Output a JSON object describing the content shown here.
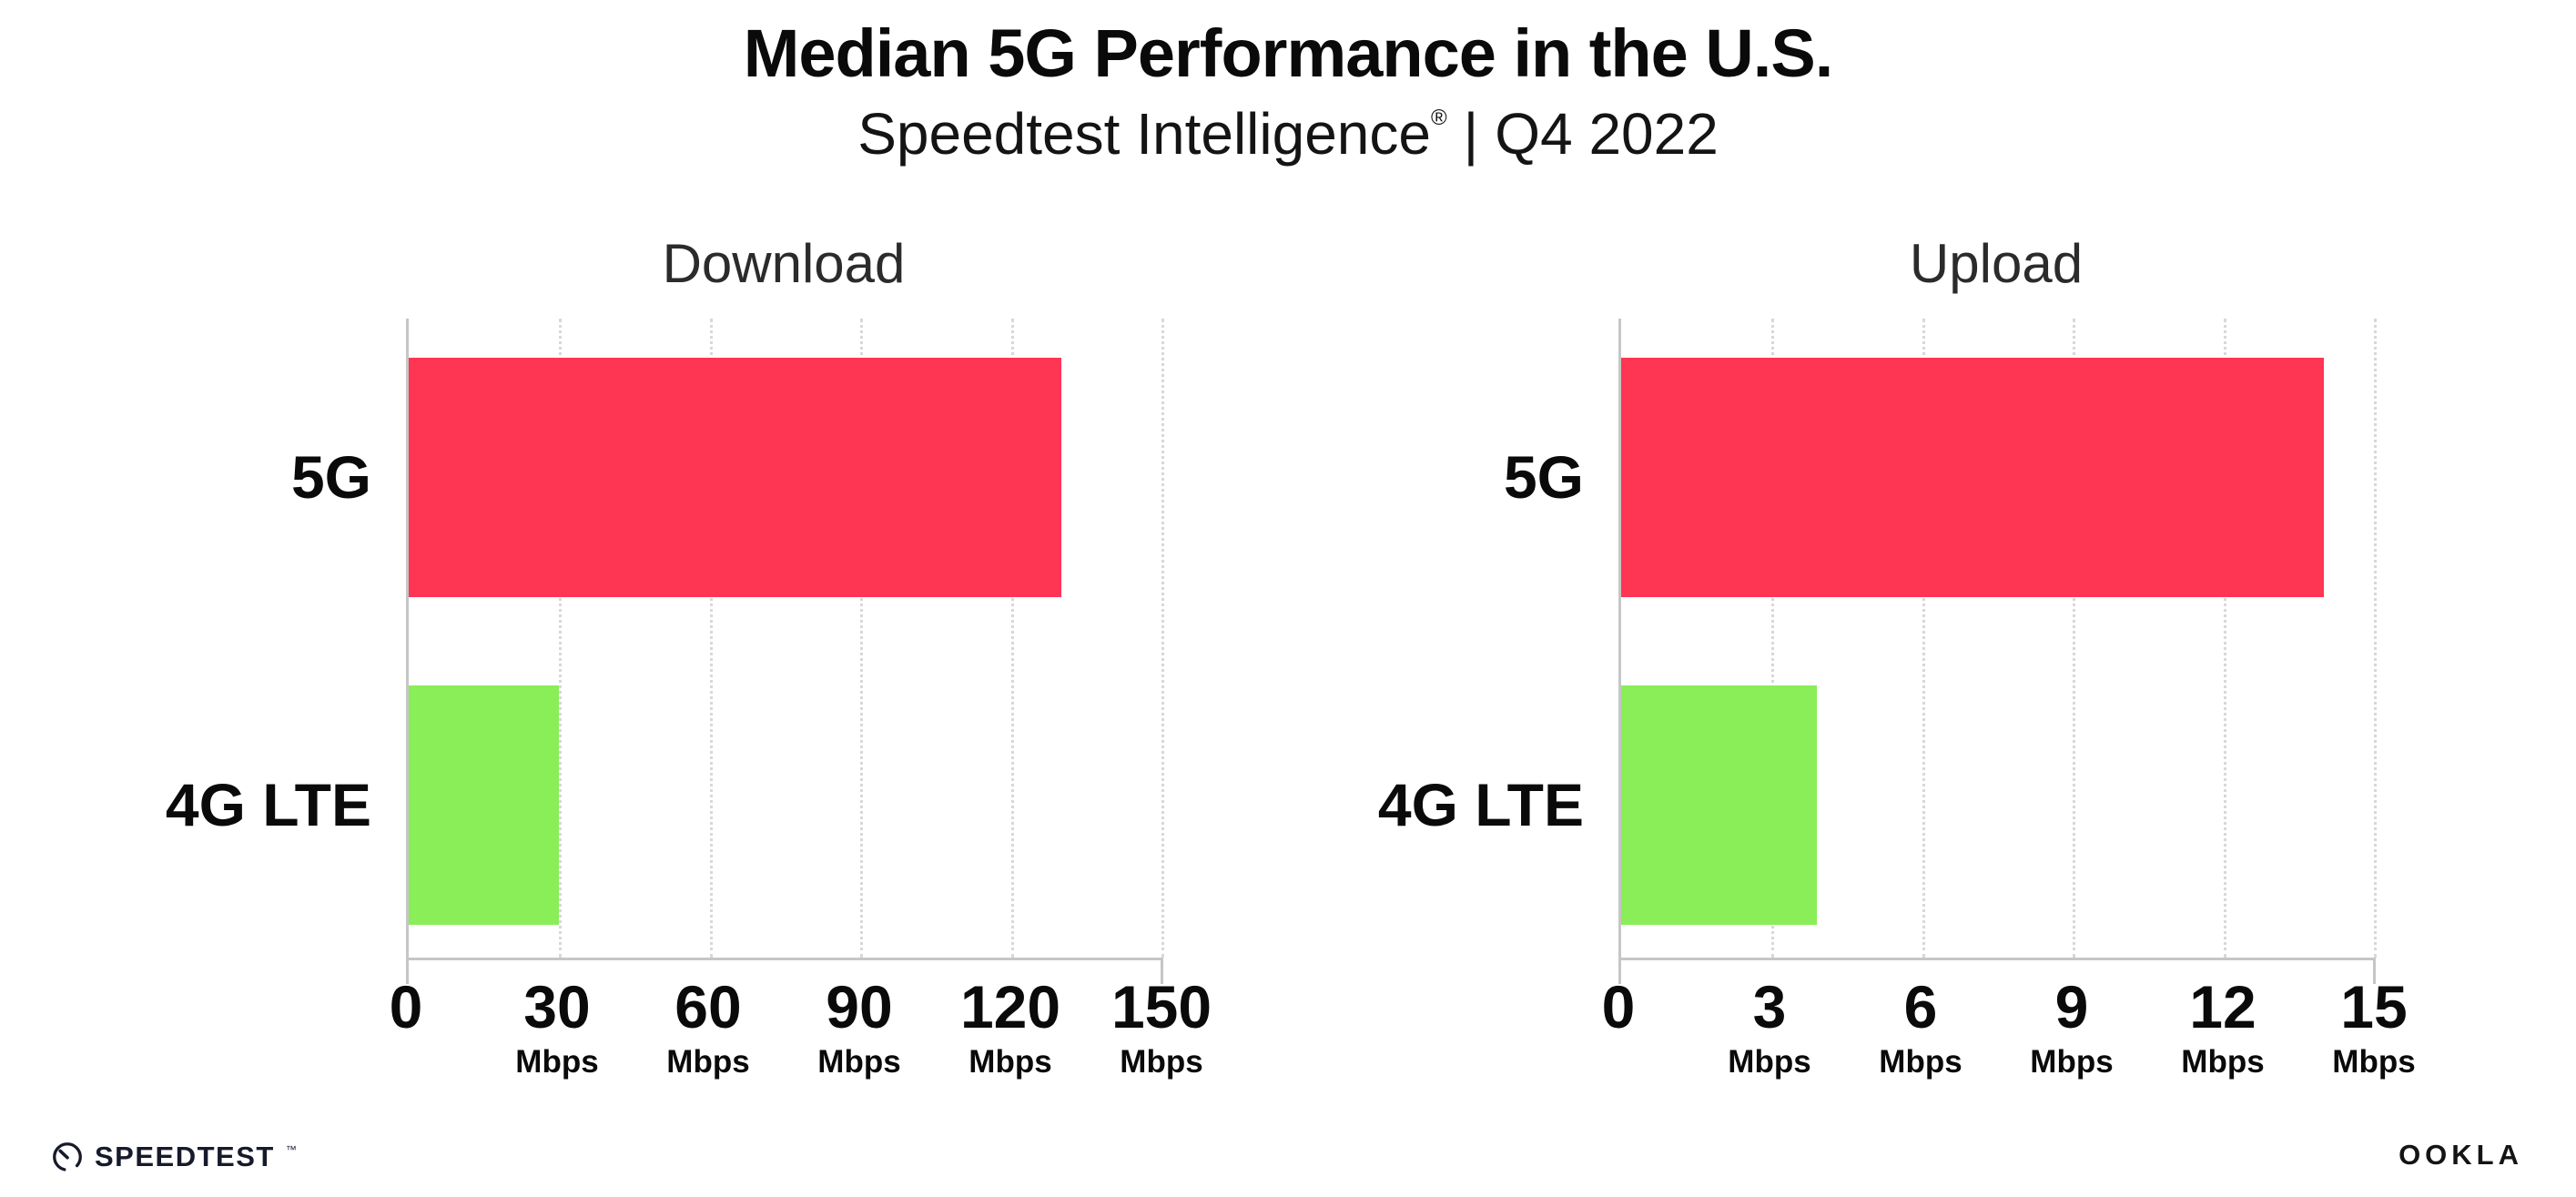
{
  "page": {
    "title": "Median 5G Performance in the U.S.",
    "subtitle_brand": "Speedtest Intelligence",
    "subtitle_reg_mark": "®",
    "subtitle_separator": "|",
    "subtitle_period": "Q4 2022"
  },
  "colors": {
    "bar_5g": "#ff3554",
    "bar_4g_lte": "#89ee58",
    "axis": "#c6c6c6",
    "gridline": "#d8d8d8",
    "text": "#0a0a0a",
    "logo": "#161a2b"
  },
  "chart_data": [
    {
      "type": "bar",
      "orientation": "horizontal",
      "title": "Download",
      "categories": [
        "5G",
        "4G LTE"
      ],
      "values": [
        130,
        30
      ],
      "unit": "Mbps",
      "xlabel": "",
      "ylabel": "",
      "xlim": [
        0,
        150
      ],
      "ticks": [
        0,
        30,
        60,
        90,
        120,
        150
      ],
      "bar_colors": [
        "#ff3554",
        "#89ee58"
      ],
      "grid": "dotted-vertical",
      "legend": "none"
    },
    {
      "type": "bar",
      "orientation": "horizontal",
      "title": "Upload",
      "categories": [
        "5G",
        "4G LTE"
      ],
      "values": [
        14,
        3.9
      ],
      "unit": "Mbps",
      "xlabel": "",
      "ylabel": "",
      "xlim": [
        0,
        15
      ],
      "ticks": [
        0,
        3,
        6,
        9,
        12,
        15
      ],
      "bar_colors": [
        "#ff3554",
        "#89ee58"
      ],
      "grid": "dotted-vertical",
      "legend": "none"
    }
  ],
  "footer": {
    "speedtest_logo_text": "SPEEDTEST",
    "speedtest_tm": "™",
    "ookla_logo_text": "OOKLA"
  }
}
